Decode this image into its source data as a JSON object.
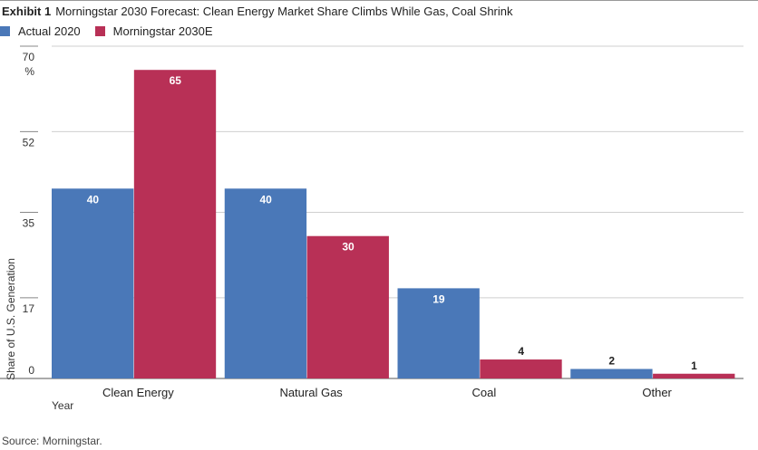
{
  "header": {
    "exhibit_label": "Exhibit 1",
    "title": "Morningstar 2030 Forecast: Clean Energy Market Share Climbs While Gas, Coal Shrink"
  },
  "legend": [
    {
      "label": "Actual 2020",
      "color": "#4a78b8"
    },
    {
      "label": "Morningstar 2030E",
      "color": "#b83056"
    }
  ],
  "source": "Source: Morningstar.",
  "chart_data": {
    "type": "bar",
    "title": "Morningstar 2030 Forecast: Clean Energy Market Share Climbs While Gas, Coal Shrink",
    "categories": [
      "Clean Energy",
      "Natural Gas",
      "Coal",
      "Other"
    ],
    "series": [
      {
        "name": "Actual 2020",
        "values": [
          40,
          40,
          19,
          2
        ],
        "color": "#4a78b8"
      },
      {
        "name": "Morningstar 2030E",
        "values": [
          65,
          30,
          4,
          1
        ],
        "color": "#b83056"
      }
    ],
    "xlabel": "Year",
    "ylabel": "Share of U.S. Generation",
    "yunit": "%",
    "ylim": [
      0,
      70
    ],
    "yticks": [
      0,
      17,
      35,
      52,
      70
    ],
    "grid": true,
    "legend_position": "top-left"
  }
}
